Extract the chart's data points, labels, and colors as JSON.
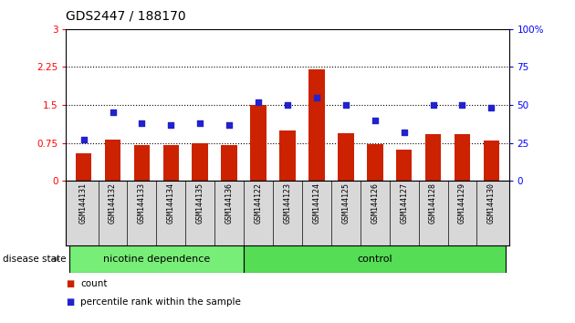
{
  "title": "GDS2447 / 188170",
  "samples": [
    "GSM144131",
    "GSM144132",
    "GSM144133",
    "GSM144134",
    "GSM144135",
    "GSM144136",
    "GSM144122",
    "GSM144123",
    "GSM144124",
    "GSM144125",
    "GSM144126",
    "GSM144127",
    "GSM144128",
    "GSM144129",
    "GSM144130"
  ],
  "counts": [
    0.55,
    0.82,
    0.7,
    0.7,
    0.75,
    0.7,
    1.5,
    1.0,
    2.2,
    0.95,
    0.72,
    0.62,
    0.92,
    0.92,
    0.8
  ],
  "percentiles": [
    27,
    45,
    38,
    37,
    38,
    37,
    52,
    50,
    55,
    50,
    40,
    32,
    50,
    50,
    48
  ],
  "bar_color": "#cc2200",
  "dot_color": "#2222cc",
  "ylim_left": [
    0,
    3
  ],
  "ylim_right": [
    0,
    100
  ],
  "yticks_left": [
    0,
    0.75,
    1.5,
    2.25,
    3
  ],
  "ytick_labels_left": [
    "0",
    "0.75",
    "1.5",
    "2.25",
    "3"
  ],
  "yticks_right": [
    0,
    25,
    50,
    75,
    100
  ],
  "ytick_labels_right": [
    "0",
    "25",
    "50",
    "75",
    "100%"
  ],
  "hlines": [
    0.75,
    1.5,
    2.25
  ],
  "groups": [
    {
      "label": "nicotine dependence",
      "start": 0,
      "end": 6,
      "color": "#77ee77"
    },
    {
      "label": "control",
      "start": 6,
      "end": 15,
      "color": "#55dd55"
    }
  ],
  "xlabel_label": "disease state",
  "legend_count_label": "count",
  "legend_pct_label": "percentile rank within the sample",
  "title_fontsize": 10,
  "tick_fontsize": 7.5,
  "label_fontsize": 8.5
}
